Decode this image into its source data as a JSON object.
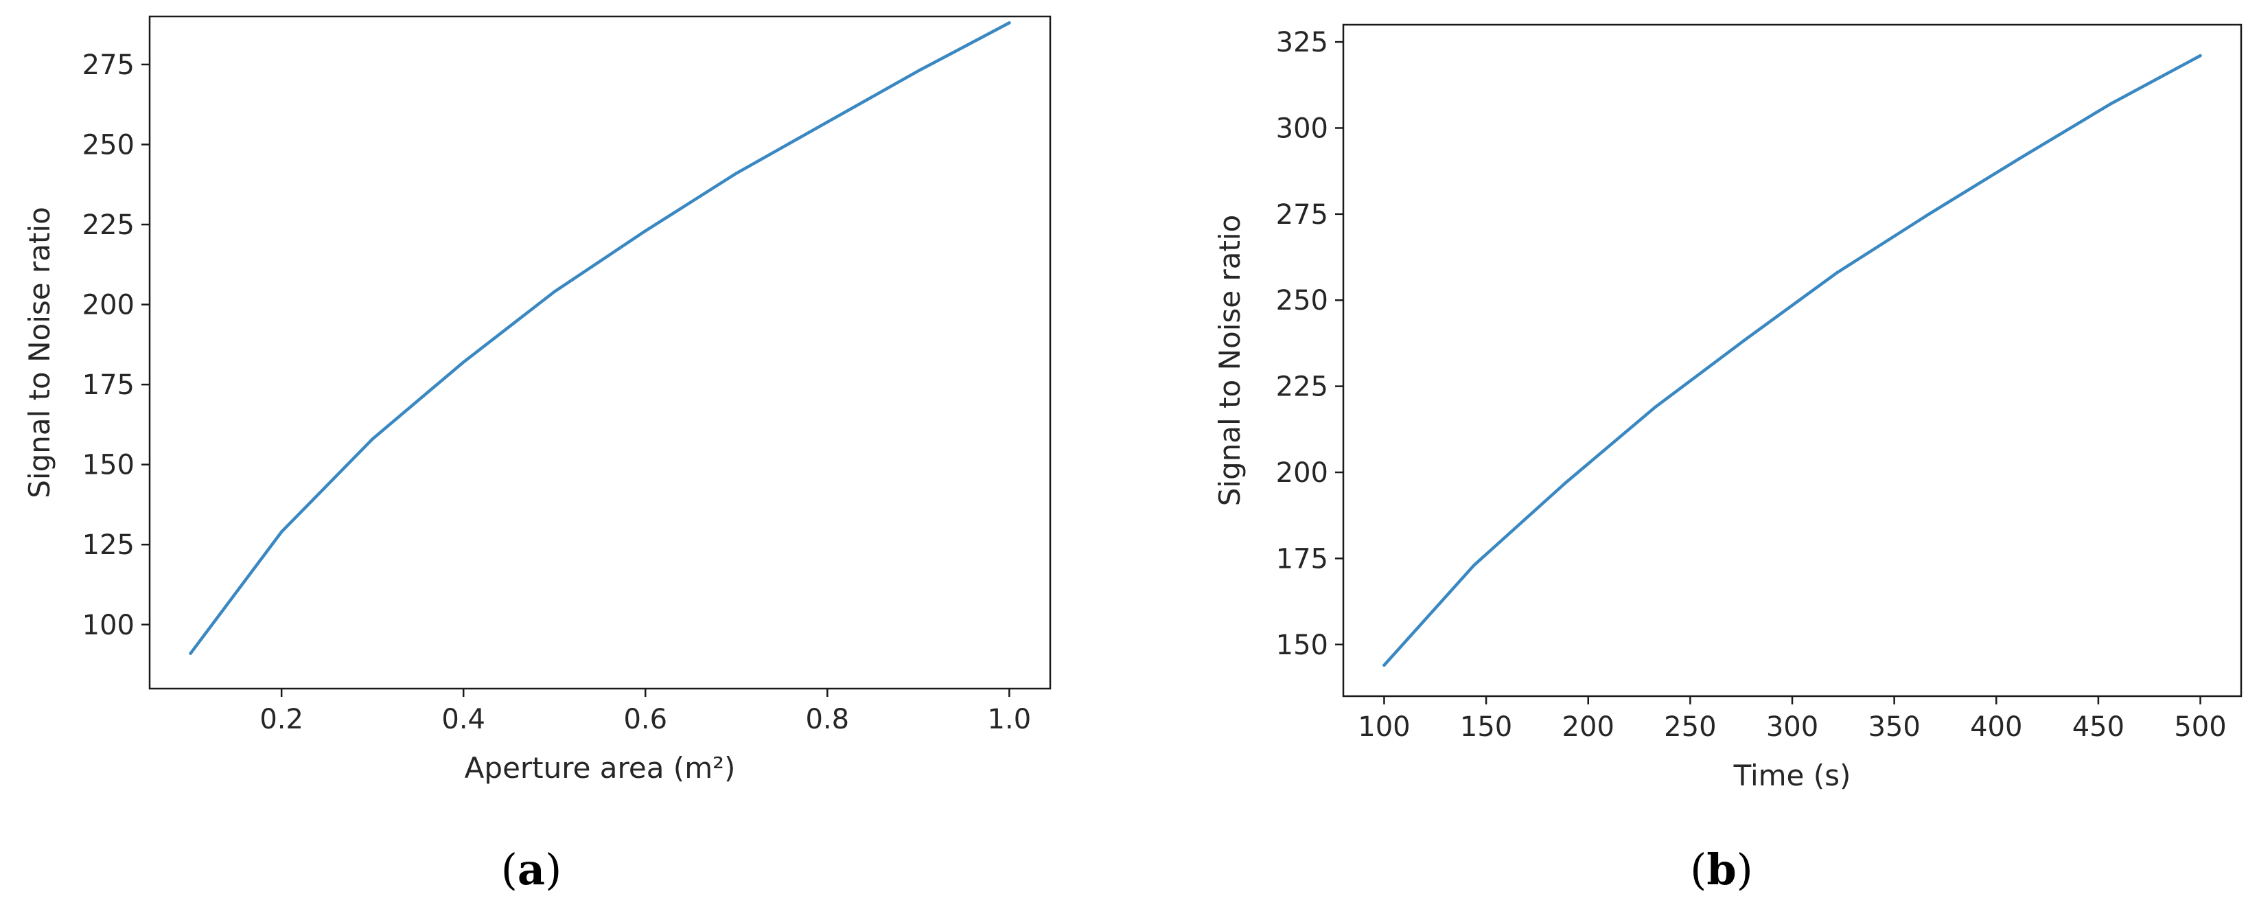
{
  "colors": {
    "line": "#3a88c2",
    "axes": "#1a1a1a",
    "text": "#262626",
    "background": "#ffffff"
  },
  "captions": [
    {
      "open": "(",
      "letter": "a",
      "close": ")"
    },
    {
      "open": "(",
      "letter": "b",
      "close": ")"
    }
  ],
  "chart_data": [
    {
      "type": "line",
      "title": "",
      "xlabel": "Aperture area (m²)",
      "ylabel": "Signal to Noise ratio",
      "xlim": [
        0.055,
        1.045
      ],
      "ylim": [
        80,
        290
      ],
      "xticks": [
        0.2,
        0.4,
        0.6,
        0.8,
        1.0
      ],
      "xtick_labels": [
        "0.2",
        "0.4",
        "0.6",
        "0.8",
        "1.0"
      ],
      "yticks": [
        100,
        125,
        150,
        175,
        200,
        225,
        250,
        275
      ],
      "ytick_labels": [
        "100",
        "125",
        "150",
        "175",
        "200",
        "225",
        "250",
        "275"
      ],
      "grid": false,
      "series": [
        {
          "x": [
            0.1,
            0.2,
            0.3,
            0.4,
            0.5,
            0.6,
            0.7,
            0.8,
            0.9,
            1.0
          ],
          "values": [
            91,
            129,
            158,
            182,
            204,
            223,
            241,
            257,
            273,
            288
          ]
        }
      ]
    },
    {
      "type": "line",
      "title": "",
      "xlabel": "Time (s)",
      "ylabel": "Signal to Noise ratio",
      "xlim": [
        80,
        520
      ],
      "ylim": [
        135,
        330
      ],
      "xticks": [
        100,
        150,
        200,
        250,
        300,
        350,
        400,
        450,
        500
      ],
      "xtick_labels": [
        "100",
        "150",
        "200",
        "250",
        "300",
        "350",
        "400",
        "450",
        "500"
      ],
      "yticks": [
        150,
        175,
        200,
        225,
        250,
        275,
        300,
        325
      ],
      "ytick_labels": [
        "150",
        "175",
        "200",
        "225",
        "250",
        "275",
        "300",
        "325"
      ],
      "grid": false,
      "series": [
        {
          "x": [
            100,
            144,
            189,
            233,
            278,
            322,
            367,
            411,
            456,
            500
          ],
          "values": [
            144,
            173,
            197,
            219,
            239,
            258,
            275,
            291,
            307,
            321
          ]
        }
      ]
    }
  ]
}
